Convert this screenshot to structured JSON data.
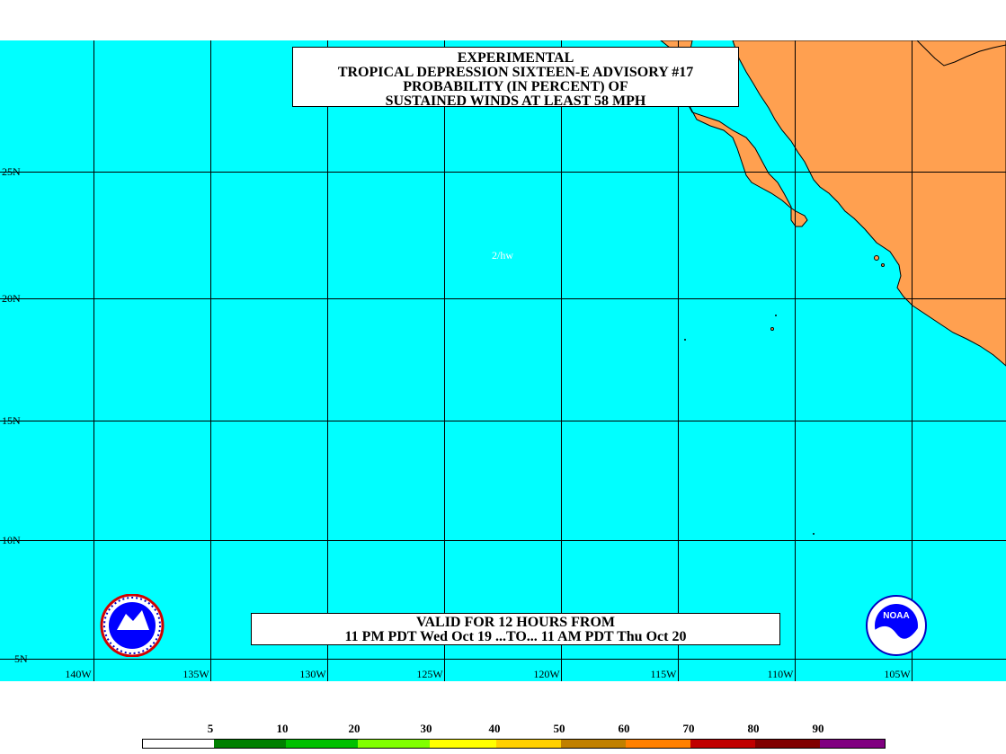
{
  "title_lines": [
    "EXPERIMENTAL",
    "TROPICAL DEPRESSION SIXTEEN-E ADVISORY #17",
    "PROBABILITY (IN PERCENT) OF",
    "SUSTAINED WINDS AT LEAST 58 MPH"
  ],
  "valid_lines": [
    "VALID FOR 12 HOURS FROM",
    "11 PM PDT Wed Oct 19 ...TO... 11 AM PDT Thu Oct 20"
  ],
  "annotation": "2/hw",
  "lat_labels": [
    "25N",
    "20N",
    "15N",
    "10N",
    "5N"
  ],
  "lon_labels": [
    "140W",
    "135W",
    "130W",
    "125W",
    "120W",
    "115W",
    "110W",
    "105W"
  ],
  "legend": {
    "ticks": [
      "5",
      "10",
      "20",
      "30",
      "40",
      "50",
      "60",
      "70",
      "80",
      "90"
    ],
    "colors": [
      "#ffffff",
      "#008000",
      "#00c000",
      "#80ff00",
      "#ffff00",
      "#ffd000",
      "#c08000",
      "#ff8000",
      "#c00000",
      "#800000",
      "#800080"
    ]
  },
  "colors": {
    "ocean": "#00ffff",
    "land": "#ffa050",
    "grid": "#000000"
  },
  "logos": {
    "left": "nws-logo",
    "right": "noaa-logo",
    "noaa_text": "NOAA"
  }
}
